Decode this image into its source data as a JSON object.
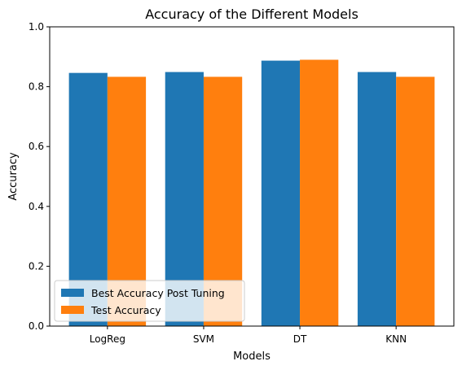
{
  "chart_data": {
    "type": "bar",
    "title": "Accuracy of the Different Models",
    "xlabel": "Models",
    "ylabel": "Accuracy",
    "categories": [
      "LogReg",
      "SVM",
      "DT",
      "KNN"
    ],
    "series": [
      {
        "name": "Best Accuracy Post Tuning",
        "values": [
          0.846,
          0.849,
          0.887,
          0.849
        ],
        "color": "#1f77b4"
      },
      {
        "name": "Test Accuracy",
        "values": [
          0.833,
          0.833,
          0.89,
          0.833
        ],
        "color": "#ff7f0e"
      }
    ],
    "ylim": [
      0,
      1.0
    ],
    "yticks": [
      "0.0",
      "0.2",
      "0.4",
      "0.6",
      "0.8",
      "1.0"
    ],
    "grid": false,
    "legend_position": "lower-left"
  }
}
